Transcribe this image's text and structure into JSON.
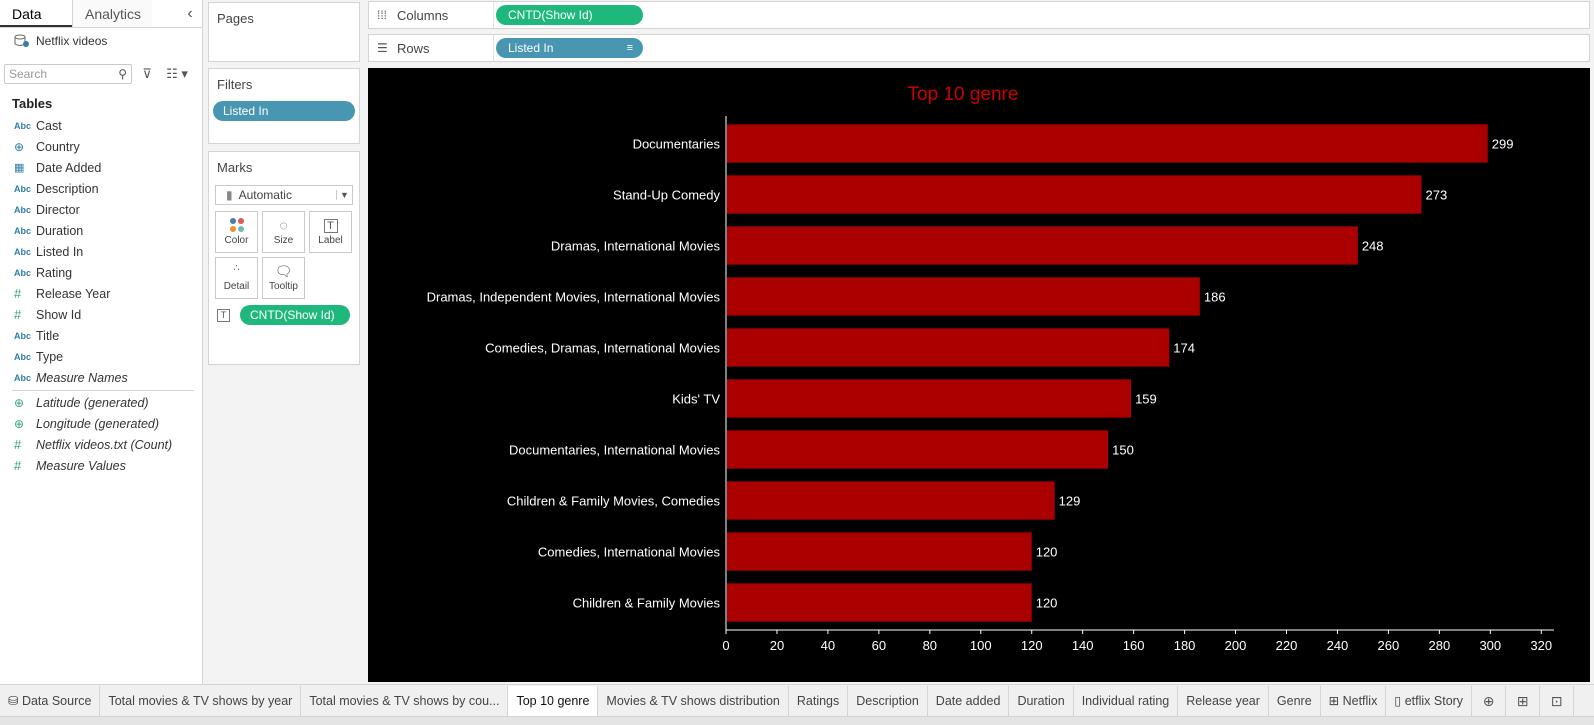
{
  "data_pane": {
    "tabs": [
      "Data",
      "Analytics"
    ],
    "collapse_icon": "chevron-left-icon",
    "datasource": "Netflix videos",
    "search_placeholder": "Search",
    "tables_heading": "Tables",
    "fields": [
      {
        "type": "Abc",
        "label": "Cast"
      },
      {
        "type": "geo",
        "label": "Country"
      },
      {
        "type": "date",
        "label": "Date Added"
      },
      {
        "type": "Abc",
        "label": "Description"
      },
      {
        "type": "Abc",
        "label": "Director"
      },
      {
        "type": "Abc",
        "label": "Duration"
      },
      {
        "type": "Abc",
        "label": "Listed In"
      },
      {
        "type": "Abc",
        "label": "Rating"
      },
      {
        "type": "#",
        "label": "Release Year"
      },
      {
        "type": "#",
        "label": "Show Id"
      },
      {
        "type": "Abc",
        "label": "Title"
      },
      {
        "type": "Abc",
        "label": "Type"
      },
      {
        "type": "Abc",
        "label": "Measure Names",
        "italic": true
      }
    ],
    "measures": [
      {
        "type": "geo",
        "label": "Latitude (generated)"
      },
      {
        "type": "geo",
        "label": "Longitude (generated)"
      },
      {
        "type": "#",
        "label": "Netflix videos.txt (Count)"
      },
      {
        "type": "#",
        "label": "Measure Values"
      }
    ]
  },
  "cards": {
    "pages_title": "Pages",
    "filters_title": "Filters",
    "filter_pill": "Listed In",
    "marks_title": "Marks",
    "marks_type": "Automatic",
    "mark_buttons": [
      "Color",
      "Size",
      "Label",
      "Detail",
      "Tooltip"
    ],
    "marks_pill": "CNTD(Show Id)"
  },
  "shelves": {
    "columns_label": "Columns",
    "columns_pill": "CNTD(Show Id)",
    "rows_label": "Rows",
    "rows_pill": "Listed In"
  },
  "chart_data": {
    "type": "bar",
    "orientation": "horizontal",
    "title": "Top 10 genre",
    "categories": [
      "Documentaries",
      "Stand-Up Comedy",
      "Dramas, International Movies",
      "Dramas, Independent Movies, International Movies",
      "Comedies, Dramas, International Movies",
      "Kids' TV",
      "Documentaries, International Movies",
      "Children & Family Movies, Comedies",
      "Comedies, International Movies",
      "Children & Family Movies"
    ],
    "values": [
      299,
      273,
      248,
      186,
      174,
      159,
      150,
      129,
      120,
      120
    ],
    "xlim": [
      0,
      325
    ],
    "xticks": [
      0,
      20,
      40,
      60,
      80,
      100,
      120,
      140,
      160,
      180,
      200,
      220,
      240,
      260,
      280,
      300,
      320
    ],
    "bar_color": "#aa0000",
    "title_color": "#cc0000",
    "background": "#000000",
    "grid": false
  },
  "bottom_tabs": [
    {
      "label": "Data Source",
      "active": false
    },
    {
      "label": "Total movies & TV shows by year",
      "active": false
    },
    {
      "label": "Total movies & TV shows by cou...",
      "active": false
    },
    {
      "label": "Top 10 genre",
      "active": true
    },
    {
      "label": "Movies & TV shows distribution",
      "active": false
    },
    {
      "label": "Ratings",
      "active": false
    },
    {
      "label": "Description",
      "active": false
    },
    {
      "label": "Date added",
      "active": false
    },
    {
      "label": "Duration",
      "active": false
    },
    {
      "label": "Individual rating",
      "active": false
    },
    {
      "label": "Release year",
      "active": false
    },
    {
      "label": "Genre",
      "active": false
    },
    {
      "label": "Netflix",
      "active": false
    },
    {
      "label": "etflix Story",
      "active": false
    }
  ]
}
